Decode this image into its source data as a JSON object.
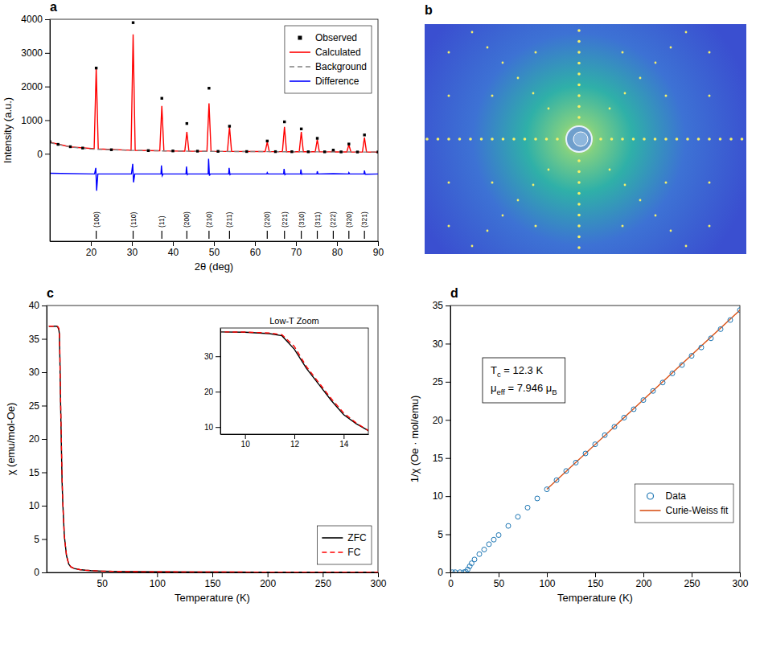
{
  "chart_data": [
    {
      "type": "line",
      "panel": "a",
      "x_label": "2θ (deg)",
      "y_label": "Intensity (a.u.)",
      "xlim": [
        10,
        90
      ],
      "ylim": [
        -2600,
        4000
      ],
      "xticks": [
        20,
        30,
        40,
        50,
        60,
        70,
        80,
        90
      ],
      "yticks": [
        0,
        1000,
        2000,
        3000,
        4000
      ],
      "legend": "upper right",
      "series": [
        {
          "name": "Observed",
          "type": "scatter",
          "marker": "square",
          "color": "#000000",
          "x": [
            10,
            12,
            15,
            18,
            21.3,
            25,
            30.3,
            34,
            37.3,
            40,
            43.4,
            46,
            48.8,
            51,
            53.8,
            58,
            63.0,
            65,
            67.2,
            69,
            71.3,
            73,
            75.2,
            77,
            79.1,
            81,
            82.9,
            85,
            86.7,
            90
          ],
          "values": [
            360,
            280,
            210,
            170,
            2550,
            120,
            3900,
            95,
            1650,
            85,
            900,
            78,
            1950,
            72,
            820,
            67,
            380,
            64,
            950,
            62,
            740,
            60,
            460,
            58,
            110,
            56,
            290,
            53,
            560,
            52
          ]
        },
        {
          "name": "Calculated",
          "type": "line",
          "line_style": "solid",
          "color": "#ff0000",
          "x": [
            10,
            15,
            20.8,
            21.3,
            21.8,
            29.8,
            30.3,
            30.8,
            36.8,
            37.3,
            37.8,
            42.9,
            43.4,
            43.9,
            48.3,
            48.8,
            49.3,
            53.3,
            53.8,
            54.3,
            62.5,
            63.0,
            63.5,
            66.7,
            67.2,
            67.7,
            70.8,
            71.3,
            71.8,
            74.7,
            75.2,
            75.7,
            78.6,
            79.1,
            79.6,
            82.4,
            82.9,
            83.4,
            86.2,
            86.7,
            87.2,
            90
          ],
          "values": [
            340,
            205,
            150,
            2550,
            145,
            105,
            3550,
            103,
            90,
            1420,
            88,
            80,
            650,
            79,
            75,
            1500,
            74,
            70,
            800,
            70,
            65,
            350,
            65,
            63,
            800,
            62,
            61,
            650,
            60,
            59,
            420,
            58,
            57,
            100,
            56,
            55,
            270,
            54,
            52,
            480,
            52,
            50
          ]
        },
        {
          "name": "Background",
          "type": "line",
          "line_style": "dashed",
          "color": "#808080",
          "x": [
            10,
            15,
            20,
            30,
            40,
            50,
            60,
            70,
            80,
            90
          ],
          "values": [
            330,
            200,
            140,
            100,
            80,
            70,
            65,
            60,
            55,
            50
          ]
        },
        {
          "name": "Difference",
          "type": "line",
          "line_style": "solid",
          "color": "#0000ff",
          "x": [
            10,
            20.9,
            21.2,
            21.4,
            21.7,
            29.9,
            30.2,
            30.4,
            30.7,
            37.1,
            37.2,
            37.4,
            37.6,
            43.2,
            43.3,
            43.5,
            43.7,
            48.6,
            48.7,
            48.9,
            49.1,
            53.6,
            53.7,
            53.9,
            54.1,
            62.9,
            63.0,
            63.2,
            67.0,
            67.1,
            67.3,
            67.5,
            71.1,
            71.2,
            71.4,
            71.6,
            75.1,
            75.2,
            75.4,
            79.1,
            82.8,
            82.9,
            83.1,
            86.6,
            86.7,
            86.9,
            90
          ],
          "values": [
            -580,
            -600,
            -420,
            -1100,
            -600,
            -600,
            -300,
            -850,
            -600,
            -600,
            -350,
            -650,
            -600,
            -600,
            -380,
            -620,
            -600,
            -600,
            -150,
            -650,
            -600,
            -600,
            -420,
            -620,
            -600,
            -600,
            -560,
            -600,
            -600,
            -450,
            -620,
            -600,
            -600,
            -470,
            -610,
            -600,
            -600,
            -520,
            -600,
            -590,
            -600,
            -560,
            -600,
            -600,
            -500,
            -610,
            -600
          ]
        }
      ],
      "reflections": {
        "x": [
          21.3,
          30.3,
          37.3,
          43.4,
          48.8,
          53.8,
          63.0,
          67.2,
          71.3,
          75.2,
          79.1,
          82.9,
          86.7
        ],
        "labels": [
          "(100)",
          "(110)",
          "(11)",
          "(200)",
          "(210)",
          "(211)",
          "(220)",
          "(221)",
          "(310)",
          "(311)",
          "(222)",
          "(320)",
          "(321)"
        ]
      }
    },
    {
      "type": "image",
      "panel": "b"
    },
    {
      "type": "line",
      "panel": "c",
      "x_label": "Temperature (K)",
      "y_label": "χ (emu/mol-Oe)",
      "xlim": [
        0,
        300
      ],
      "ylim": [
        0,
        40
      ],
      "xticks": [
        50,
        100,
        150,
        200,
        250,
        300
      ],
      "yticks": [
        0,
        5,
        10,
        15,
        20,
        25,
        30,
        35,
        40
      ],
      "legend": "lower right",
      "series": [
        {
          "name": "ZFC",
          "type": "line",
          "line_style": "solid",
          "color": "#000000",
          "x": [
            2,
            5,
            8,
            9,
            10,
            11,
            11.5,
            12,
            12.5,
            13,
            13.5,
            14,
            14.5,
            15,
            16,
            18,
            20,
            22,
            25,
            30,
            35,
            40,
            50,
            60,
            80,
            100,
            150,
            200,
            250,
            300
          ],
          "values": [
            36.9,
            36.9,
            36.9,
            36.9,
            36.8,
            36.4,
            35.8,
            32,
            26.5,
            22,
            17.5,
            13.5,
            11,
            9,
            5.5,
            2.5,
            1.25,
            0.83,
            0.59,
            0.42,
            0.33,
            0.27,
            0.2,
            0.165,
            0.118,
            0.092,
            0.06,
            0.044,
            0.035,
            0.029
          ]
        },
        {
          "name": "FC",
          "type": "line",
          "line_style": "dashed",
          "color": "#ff0000",
          "x": [
            2,
            5,
            8,
            9,
            10,
            11,
            11.5,
            12,
            12.5,
            13,
            13.5,
            14,
            14.5,
            15,
            16,
            18,
            20,
            22,
            25,
            30,
            35,
            40,
            50,
            60,
            80,
            100,
            150,
            200,
            250,
            300
          ],
          "values": [
            36.9,
            36.9,
            36.9,
            36.9,
            36.85,
            36.6,
            36.1,
            32.8,
            27,
            22.5,
            18,
            14,
            11.2,
            9,
            5.5,
            2.5,
            1.25,
            0.83,
            0.59,
            0.42,
            0.33,
            0.27,
            0.2,
            0.165,
            0.118,
            0.092,
            0.06,
            0.044,
            0.035,
            0.029
          ]
        }
      ],
      "inset": {
        "title": "Low-T Zoom",
        "xlim": [
          9,
          15
        ],
        "ylim": [
          8,
          38
        ],
        "xticks": [
          10,
          12,
          14
        ],
        "yticks": [
          10,
          20,
          30
        ]
      }
    },
    {
      "type": "scatter",
      "panel": "d",
      "x_label": "Temperature (K)",
      "y_label": "1/χ (Oe · mol/emu)",
      "xlim": [
        0,
        300
      ],
      "ylim": [
        0,
        35
      ],
      "xticks": [
        0,
        50,
        100,
        150,
        200,
        250,
        300
      ],
      "yticks": [
        0,
        5,
        10,
        15,
        20,
        25,
        30,
        35
      ],
      "legend": "lower right",
      "series": [
        {
          "name": "Data",
          "type": "scatter",
          "marker": "circle",
          "color": "#1f77b4",
          "x": [
            2,
            5,
            10,
            14,
            16,
            18,
            20,
            22,
            25,
            30,
            35,
            40,
            45,
            50,
            60,
            70,
            80,
            90,
            100,
            110,
            120,
            130,
            140,
            150,
            160,
            170,
            180,
            190,
            200,
            210,
            220,
            230,
            240,
            250,
            260,
            270,
            280,
            290,
            300
          ],
          "values": [
            0.03,
            0.03,
            0.03,
            0.03,
            0.1,
            0.4,
            0.8,
            1.2,
            1.7,
            2.4,
            3.0,
            3.7,
            4.3,
            4.9,
            6.1,
            7.3,
            8.5,
            9.7,
            10.9,
            12.1,
            13.3,
            14.4,
            15.6,
            16.8,
            18.0,
            19.1,
            20.3,
            21.4,
            22.6,
            23.8,
            24.9,
            26.1,
            27.2,
            28.4,
            29.5,
            30.7,
            31.9,
            33.1,
            34.4
          ]
        },
        {
          "name": "Curie-Weiss fit",
          "type": "line",
          "line_style": "solid",
          "color": "#d95319",
          "x": [
            100,
            300
          ],
          "values": [
            10.9,
            34.4
          ]
        }
      ],
      "annotations": [
        [
          "T",
          "c",
          " = 12.3 K"
        ],
        [
          "μ",
          "eff",
          " = 7.946 μ",
          "B"
        ]
      ]
    }
  ]
}
